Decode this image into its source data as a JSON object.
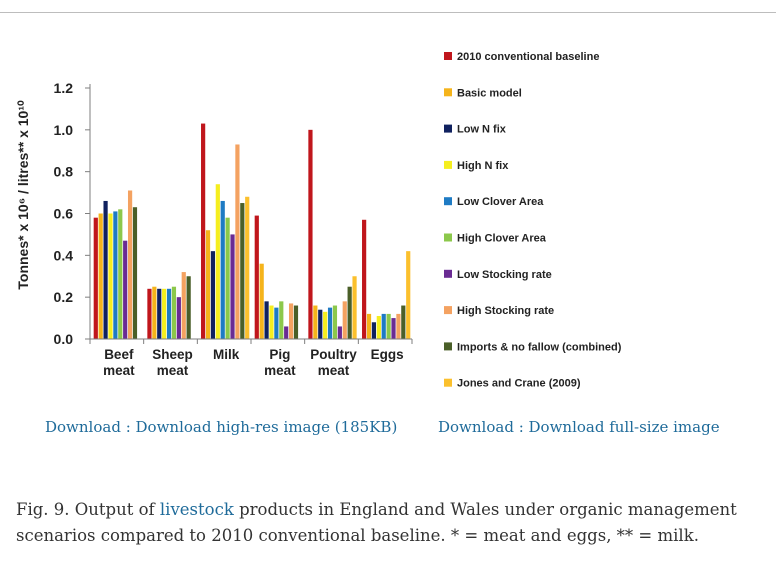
{
  "chart_data": {
    "type": "bar",
    "ylabel": "Tonnes* x 10⁶ / litres** x 10¹⁰",
    "ylim": [
      0,
      1.2
    ],
    "yticks": [
      "0.0",
      "0.2",
      "0.4",
      "0.6",
      "0.8",
      "1.0",
      "1.2"
    ],
    "grid": false,
    "legend_position": "right",
    "categories": [
      [
        "Beef",
        "meat"
      ],
      [
        "Sheep",
        "meat"
      ],
      [
        "Milk"
      ],
      [
        "Pig",
        "meat"
      ],
      [
        "Poultry",
        "meat"
      ],
      [
        "Eggs"
      ]
    ],
    "series": [
      {
        "name": "2010 conventional baseline",
        "color": "#c0161c",
        "values": [
          0.58,
          0.24,
          1.03,
          0.59,
          1.0,
          0.57
        ]
      },
      {
        "name": "Basic model",
        "color": "#f5b41b",
        "values": [
          0.6,
          0.25,
          0.52,
          0.36,
          0.16,
          0.12
        ]
      },
      {
        "name": "Low N fix",
        "color": "#10215f",
        "values": [
          0.66,
          0.24,
          0.42,
          0.18,
          0.14,
          0.08
        ]
      },
      {
        "name": "High N fix",
        "color": "#f5ee1f",
        "values": [
          0.6,
          0.24,
          0.74,
          0.16,
          0.13,
          0.11
        ]
      },
      {
        "name": "Low Clover Area",
        "color": "#1e7bc4",
        "values": [
          0.61,
          0.24,
          0.66,
          0.15,
          0.15,
          0.12
        ]
      },
      {
        "name": "High Clover Area",
        "color": "#8cc84b",
        "values": [
          0.62,
          0.25,
          0.58,
          0.18,
          0.16,
          0.12
        ]
      },
      {
        "name": "Low Stocking rate",
        "color": "#6a2b93",
        "values": [
          0.47,
          0.2,
          0.5,
          0.06,
          0.06,
          0.1
        ]
      },
      {
        "name": "High Stocking rate",
        "color": "#f4a261",
        "values": [
          0.71,
          0.32,
          0.93,
          0.17,
          0.18,
          0.12
        ]
      },
      {
        "name": "Imports & no fallow (combined)",
        "color": "#4a5f28",
        "values": [
          0.63,
          0.3,
          0.65,
          0.16,
          0.25,
          0.16
        ]
      },
      {
        "name": "Jones and Crane (2009)",
        "color": "#fbc02d",
        "values": [
          null,
          null,
          0.68,
          null,
          0.3,
          0.42
        ]
      }
    ]
  },
  "links": {
    "download_hires": "Download : Download high-res image (185KB)",
    "download_full": "Download : Download full-size image"
  },
  "caption": {
    "prefix": "Fig. 9. Output of ",
    "link": "livestock",
    "suffix": " products in England and Wales under organic management scenarios compared to 2010 conventional baseline. * = meat and eggs, ** = milk."
  }
}
